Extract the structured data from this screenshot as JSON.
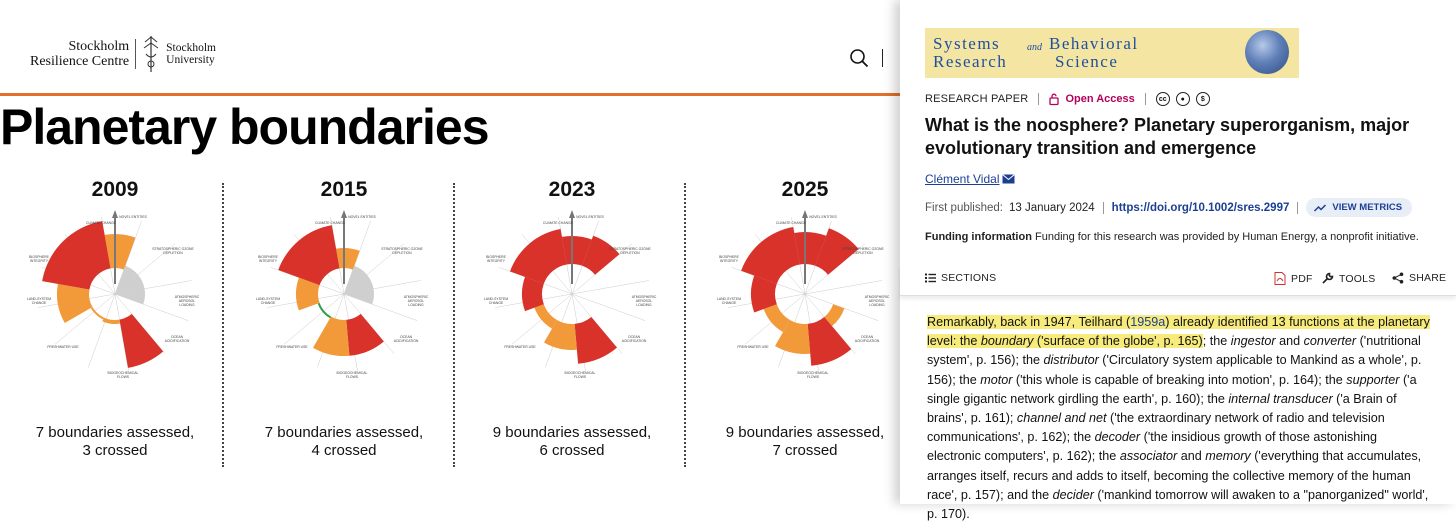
{
  "left_page": {
    "logo": {
      "src_line1": "Stockholm",
      "src_line2": "Resilience Centre",
      "su_line1": "Stockholm",
      "su_line2": "University"
    },
    "icons": {
      "search": "search-icon"
    },
    "title": "Planetary boundaries",
    "accent_color": "#e0702a",
    "years": [
      {
        "year": "2009",
        "caption_line1": "7 boundaries assessed,",
        "caption_line2": "3 crossed"
      },
      {
        "year": "2015",
        "caption_line1": "7 boundaries assessed,",
        "caption_line2": "4 crossed"
      },
      {
        "year": "2023",
        "caption_line1": "9 boundaries assessed,",
        "caption_line2": "6 crossed"
      },
      {
        "year": "2025",
        "caption_line1": "9 boundaries assessed,",
        "caption_line2": "7 crossed"
      }
    ],
    "diagram_labels": {
      "climate_change": "CLIMATE CHANGE",
      "novel_entities": "NOVEL ENTITIES",
      "stratospheric": "STRATOSPHERIC OZONE",
      "stratospheric2": "DEPLETION",
      "aerosol": "ATMOSPHERIC",
      "aerosol2": "AEROSOL",
      "aerosol3": "LOADING",
      "ocean": "OCEAN",
      "ocean2": "ACIDIFICATION",
      "bgc": "BIOGEOCHEMICAL",
      "bgc2": "FLOWS",
      "freshwater": "FRESHWATER USE",
      "freshwater_change": "FRESHWATER CHANGE",
      "land": "LAND-SYSTEM",
      "land2": "CHANGE",
      "biosphere": "BIOSPHERE",
      "biosphere2": "INTEGRITY"
    },
    "colors": {
      "safe": "#2f9e4e",
      "increasing": "#f29a3a",
      "high_risk": "#d8322a",
      "unquantified": "#cfcfcf"
    }
  },
  "article": {
    "journal_line1": "Systems",
    "journal_and": "and",
    "journal_line1b": "Behavioral",
    "journal_line2": "Research",
    "journal_line2b": "Science",
    "paper_type": "RESEARCH PAPER",
    "open_access": "Open Access",
    "license_icons": [
      "cc-icon",
      "by-icon",
      "nc-icon"
    ],
    "title": "What is the noosphere? Planetary superorganism, major evolutionary transition and emergence",
    "author": "Clément Vidal",
    "published_label": "First published:",
    "published_date": "13 January 2024",
    "doi": "https://doi.org/10.1002/sres.2997",
    "view_metrics": "VIEW METRICS",
    "funding_label": "Funding information",
    "funding_text": "Funding for this research was provided by Human Energy, a nonprofit initiative.",
    "toolbar": {
      "sections": "SECTIONS",
      "pdf": "PDF",
      "tools": "TOOLS",
      "share": "SHARE"
    },
    "body": {
      "hl_1": "Remarkably, back in 1947, Teilhard (",
      "hl_ref": "1959a",
      "hl_2": ") already identified 13 functions at the planetary level: the ",
      "hl_boundary": "boundary",
      "hl_3": " ('surface of the globe', p. 165)",
      "t1": "; the ",
      "ingestor": "ingestor",
      "t2": " and ",
      "converter": "converter",
      "t3": " ('nutritional system', p. 156); the ",
      "distributor": "distributor",
      "t4": " ('Circulatory system applicable to Mankind as a whole', p. 156); the ",
      "motor": "motor",
      "t5": " ('this whole is capable of breaking into motion', p. 164); the ",
      "supporter": "supporter",
      "t6": " ('a single gigantic network girdling the earth', p. 160); the ",
      "internal_transducer": "internal transducer",
      "t7": " ('a Brain of brains', p. 161); ",
      "channel_net": "channel and net",
      "t8": " ('the extraordinary network of radio and television communications', p. 162); the ",
      "decoder": "decoder",
      "t9": " ('the insidious growth of those astonishing electronic computers', p. 162); the ",
      "associator": "associator",
      "t10": " and ",
      "memory": "memory",
      "t11": " ('everything that accumulates, arranges itself, recurs and adds to itself, becoming the collective memory of the human race', p. 157); and the ",
      "decider": "decider",
      "t12": " ('mankind tomorrow will awaken to a \"panorganized\" world', p. 170)."
    }
  }
}
